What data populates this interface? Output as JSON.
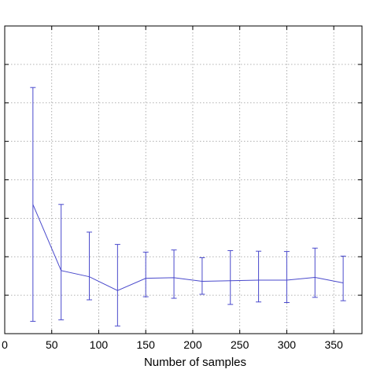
{
  "chart_data": {
    "type": "line",
    "title": "",
    "xlabel": "Number of samples",
    "ylabel": "",
    "xlim": [
      0,
      380
    ],
    "ylim": [
      0,
      1
    ],
    "grid": true,
    "error_bars": true,
    "x_ticks": [
      0,
      50,
      100,
      150,
      200,
      250,
      300,
      350
    ],
    "x_tick_labels": [
      "0",
      "50",
      "100",
      "150",
      "200",
      "250",
      "300",
      "350"
    ],
    "y_ticks": [
      0.125,
      0.25,
      0.375,
      0.5,
      0.625,
      0.75,
      0.875
    ],
    "series": [
      {
        "color": "#4a4acc",
        "x": [
          30,
          60,
          90,
          120,
          150,
          180,
          210,
          240,
          270,
          300,
          330,
          360
        ],
        "y": [
          0.42,
          0.205,
          0.185,
          0.14,
          0.18,
          0.182,
          0.17,
          0.172,
          0.174,
          0.174,
          0.183,
          0.165
        ],
        "low": [
          0.04,
          0.045,
          0.11,
          0.025,
          0.12,
          0.115,
          0.128,
          0.095,
          0.103,
          0.101,
          0.118,
          0.107
        ],
        "high": [
          0.8,
          0.42,
          0.33,
          0.29,
          0.265,
          0.272,
          0.247,
          0.27,
          0.268,
          0.267,
          0.278,
          0.252
        ]
      }
    ]
  }
}
